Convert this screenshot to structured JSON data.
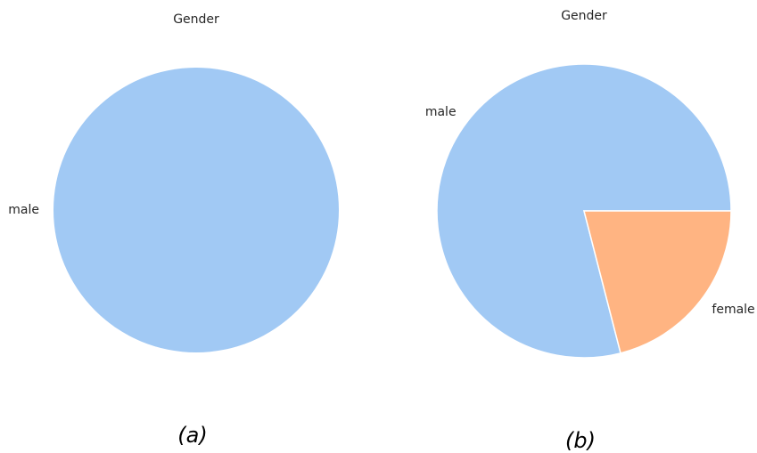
{
  "chart_data": [
    {
      "type": "pie",
      "title": "Gender",
      "caption": "(a)",
      "categories": [
        "male"
      ],
      "values": [
        100
      ],
      "colors": [
        "#a1c9f4"
      ]
    },
    {
      "type": "pie",
      "title": "Gender",
      "caption": "(b)",
      "categories": [
        "male",
        "female"
      ],
      "values": [
        79,
        21
      ],
      "colors": [
        "#a1c9f4",
        "#ffb482"
      ]
    }
  ]
}
